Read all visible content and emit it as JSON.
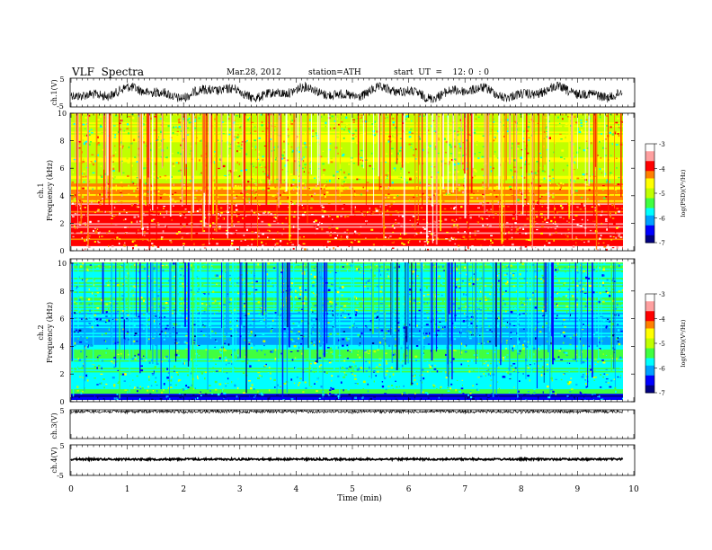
{
  "header": {
    "title": "VLF  Spectra",
    "date": "Mar.28, 2012",
    "station": "station=ATH",
    "start": "start  UT  =    12: 0  : 0"
  },
  "chart_data": {
    "type": "heatmap",
    "x_axis": {
      "label": "Time  (min)",
      "range": [
        0,
        10
      ],
      "ticks": [
        "0",
        "1",
        "2",
        "3",
        "4",
        "5",
        "6",
        "7",
        "8",
        "9",
        "10"
      ],
      "data_end": 9.8
    },
    "panels": [
      {
        "id": "ch1-waveform",
        "type": "line",
        "ylabel": "ch.1(V)",
        "yticks": [
          "5",
          "-5"
        ],
        "ylim": [
          -5,
          5
        ]
      },
      {
        "id": "ch1-spectrogram",
        "type": "heatmap",
        "channel_label": "ch.1",
        "ylabel": "Frequency  (kHz)",
        "yticks": [
          "0",
          "2",
          "4",
          "6",
          "8",
          "10"
        ],
        "ylim": [
          0,
          10
        ],
        "colorbar": {
          "label": "log(PSD)(V²/Hz)",
          "ticks": [
            "-3",
            "-4",
            "-5",
            "-6",
            "-7"
          ],
          "range": [
            -7,
            -3
          ]
        }
      },
      {
        "id": "ch2-spectrogram",
        "type": "heatmap",
        "channel_label": "ch.2",
        "ylabel": "Frequency  (kHz)",
        "yticks": [
          "0",
          "2",
          "4",
          "6",
          "8",
          "10"
        ],
        "ylim": [
          0,
          10
        ],
        "colorbar": {
          "label": "log(PSD)(V²/Hz)",
          "ticks": [
            "-3",
            "-4",
            "-5",
            "-6",
            "-7"
          ],
          "range": [
            -7,
            -3
          ]
        }
      },
      {
        "id": "ch3-waveform",
        "type": "line",
        "ylabel": "ch.3(V)",
        "yticks": [
          "5"
        ],
        "ylim": [
          -5,
          5
        ]
      },
      {
        "id": "ch4-waveform",
        "type": "line",
        "ylabel": "ch.4(V)",
        "yticks": [
          "5",
          "-5"
        ],
        "ylim": [
          -5,
          5
        ]
      }
    ],
    "colorscale": [
      "#000080",
      "#0000ff",
      "#00a0ff",
      "#00ffff",
      "#40ff40",
      "#c0ff00",
      "#ffff00",
      "#ff8000",
      "#ff0000",
      "#ffa0a0",
      "#ffffff"
    ]
  }
}
